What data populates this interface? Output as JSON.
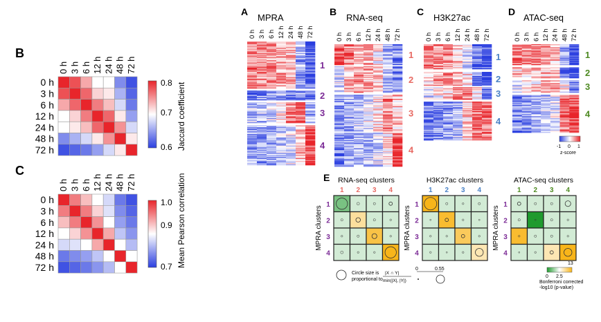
{
  "colors": {
    "red": "#e8252b",
    "white": "#ffffff",
    "blue": "#2b3fe0",
    "green_dark": "#1f9a2e",
    "green_light": "#cfe9c2",
    "yellow": "#f8b51a",
    "purple": "#7b2a96",
    "salmon": "#e86a63",
    "steel": "#4a82c6",
    "olive": "#4e8a22"
  },
  "time_labels": [
    "0 h",
    "3 h",
    "6 h",
    "12 h",
    "24 h",
    "48 h",
    "72 h"
  ],
  "panel_B": {
    "letter": "B",
    "colorbar_title": "Jaccard coefficient",
    "colorbar_ticks": [
      "0.8",
      "0.7",
      "0.6"
    ],
    "matrix": [
      [
        0.8,
        0.78,
        0.74,
        0.7,
        0.7,
        0.64,
        0.61
      ],
      [
        0.78,
        0.8,
        0.77,
        0.72,
        0.71,
        0.66,
        0.62
      ],
      [
        0.74,
        0.77,
        0.8,
        0.76,
        0.73,
        0.68,
        0.63
      ],
      [
        0.7,
        0.72,
        0.76,
        0.8,
        0.77,
        0.71,
        0.65
      ],
      [
        0.7,
        0.71,
        0.73,
        0.77,
        0.8,
        0.75,
        0.68
      ],
      [
        0.64,
        0.66,
        0.68,
        0.71,
        0.75,
        0.8,
        0.71
      ],
      [
        0.61,
        0.62,
        0.63,
        0.65,
        0.68,
        0.71,
        0.8
      ]
    ]
  },
  "panel_C": {
    "letter": "C",
    "colorbar_title": "Mean Pearson correlation",
    "colorbar_ticks": [
      "1.0",
      "0.9",
      "0.7"
    ],
    "matrix": [
      [
        1.0,
        0.96,
        0.93,
        0.9,
        0.86,
        0.76,
        0.72
      ],
      [
        0.96,
        1.0,
        0.96,
        0.92,
        0.87,
        0.78,
        0.74
      ],
      [
        0.93,
        0.96,
        1.0,
        0.95,
        0.9,
        0.8,
        0.76
      ],
      [
        0.9,
        0.92,
        0.95,
        1.0,
        0.94,
        0.84,
        0.79
      ],
      [
        0.86,
        0.87,
        0.9,
        0.94,
        1.0,
        0.9,
        0.83
      ],
      [
        0.76,
        0.78,
        0.8,
        0.84,
        0.9,
        1.0,
        0.9
      ],
      [
        0.72,
        0.74,
        0.76,
        0.79,
        0.83,
        0.9,
        1.0
      ]
    ]
  },
  "panel_A": {
    "letter": "A",
    "title": "MPRA",
    "clusters": [
      "1",
      "2",
      "3",
      "4"
    ]
  },
  "panel_B2": {
    "letter": "B",
    "title": "RNA-seq",
    "clusters": [
      "1",
      "2",
      "3",
      "4"
    ]
  },
  "panel_C2": {
    "letter": "C",
    "title": "H3K27ac",
    "clusters": [
      "1",
      "2",
      "3",
      "4"
    ]
  },
  "panel_D": {
    "letter": "D",
    "title": "ATAC-seq",
    "clusters": [
      "1",
      "2",
      "3",
      "4"
    ],
    "colorbar_ticks": [
      "-1",
      "0",
      "1"
    ],
    "colorbar_title": "z-score"
  },
  "panel_E": {
    "letter": "E",
    "row_axis": "MPRA clusters",
    "cluster_ids": [
      "1",
      "2",
      "3",
      "4"
    ],
    "grids": [
      {
        "title": "RNA-seq clusters",
        "logp": [
          [
            1,
            2,
            2,
            2
          ],
          [
            2,
            7,
            2,
            2
          ],
          [
            2,
            2,
            11,
            2
          ],
          [
            2,
            2,
            2,
            13
          ]
        ],
        "size": [
          [
            0.5,
            0.12,
            0.1,
            0.15
          ],
          [
            0.1,
            0.2,
            0.1,
            0.08
          ],
          [
            0.08,
            0.1,
            0.22,
            0.08
          ],
          [
            0.12,
            0.08,
            0.08,
            0.5
          ]
        ]
      },
      {
        "title": "H3K27ac clusters",
        "logp": [
          [
            13,
            2,
            2,
            2
          ],
          [
            2,
            12,
            2,
            2
          ],
          [
            2,
            2,
            10,
            2
          ],
          [
            2,
            2,
            2,
            6
          ]
        ],
        "size": [
          [
            0.55,
            0.1,
            0.08,
            0.1
          ],
          [
            0.06,
            0.15,
            0.08,
            0.06
          ],
          [
            0.08,
            0.08,
            0.15,
            0.08
          ],
          [
            0.08,
            0.06,
            0.08,
            0.35
          ]
        ]
      },
      {
        "title": "ATAC-seq clusters",
        "logp": [
          [
            2,
            2,
            2,
            2
          ],
          [
            2,
            0,
            2,
            2
          ],
          [
            12,
            2,
            2,
            2
          ],
          [
            2,
            2,
            6,
            13
          ]
        ],
        "size": [
          [
            0.15,
            0.1,
            0.1,
            0.25
          ],
          [
            0.1,
            0.05,
            0.1,
            0.08
          ],
          [
            0.08,
            0.1,
            0.1,
            0.08
          ],
          [
            0.06,
            0.08,
            0.15,
            0.35
          ]
        ]
      }
    ],
    "legend_text": "Circle size is proportional to",
    "legend_formula": "|X ∩ Y| / min(|X|, |Y|)",
    "legend_ticks": [
      "0",
      "0.55"
    ],
    "colorbar_ticks": [
      "0",
      "2.5",
      "13"
    ],
    "colorbar_title": "Bonferroni corrected -log10 (p-value)"
  }
}
